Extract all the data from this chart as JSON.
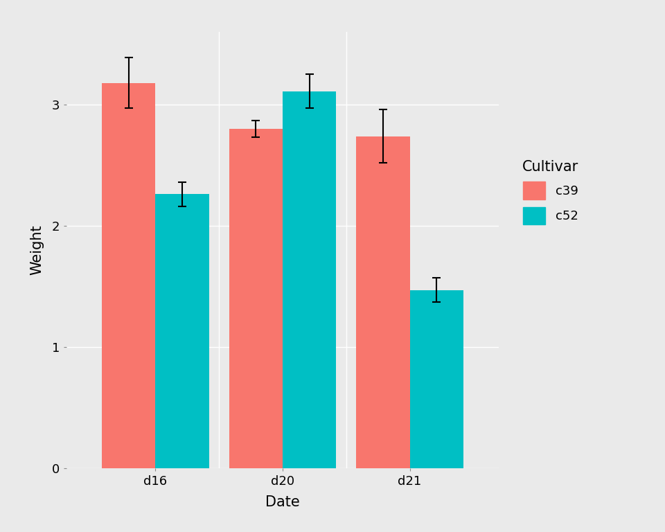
{
  "dates": [
    "d16",
    "d20",
    "d21"
  ],
  "c39_values": [
    3.18,
    2.8,
    2.74
  ],
  "c52_values": [
    2.26,
    3.11,
    1.47
  ],
  "c39_errors": [
    0.21,
    0.07,
    0.22
  ],
  "c52_errors": [
    0.1,
    0.14,
    0.1
  ],
  "c39_color": "#F8766D",
  "c52_color": "#00BFC4",
  "xlabel": "Date",
  "ylabel": "Weight",
  "legend_title": "Cultivar",
  "legend_labels": [
    "c39",
    "c52"
  ],
  "ylim": [
    0,
    3.6
  ],
  "yticks": [
    0,
    1,
    2,
    3
  ],
  "plot_bg": "#EAEAEA",
  "outer_bg": "#EAEAEA",
  "grid_color": "#FFFFFF",
  "bar_width": 0.42,
  "capsize": 4,
  "capthick": 1.5,
  "elinewidth": 1.5
}
